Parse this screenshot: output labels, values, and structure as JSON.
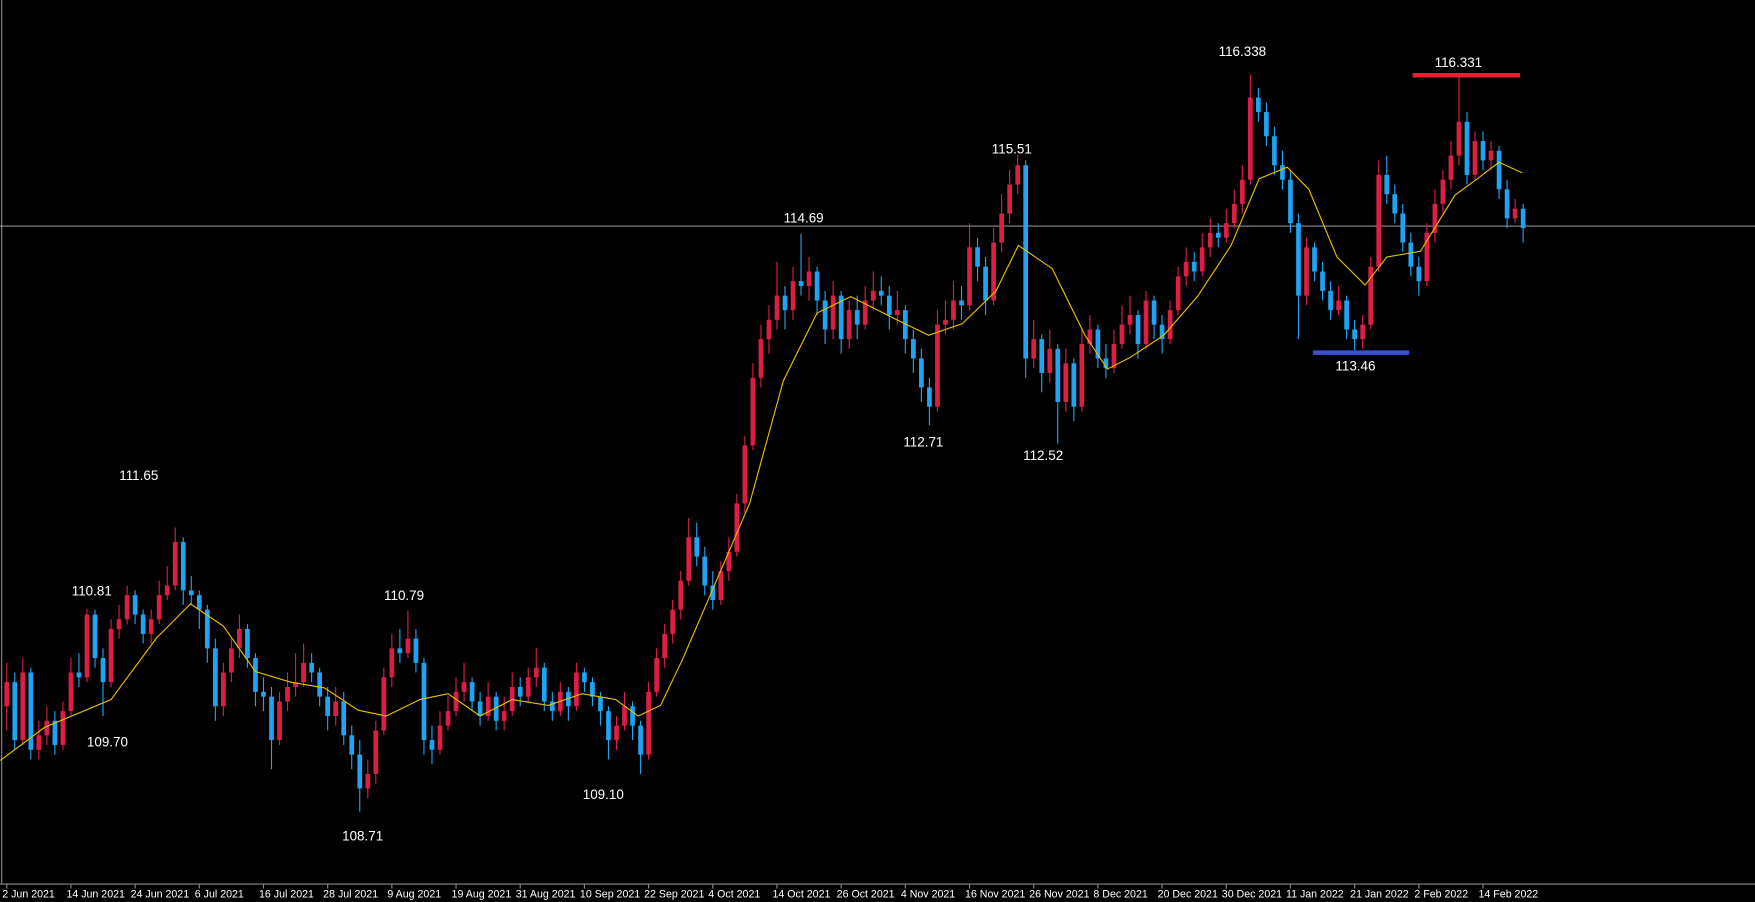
{
  "chart_data": {
    "type": "candlestick",
    "bull_color": "#dc1e44",
    "bear_color": "#1ea4f4",
    "ma_color": "#e8c000",
    "axis_color": "#8a8a8a",
    "ylim": [
      107.96,
      117.11
    ],
    "xlim": [
      -0.84,
      217.9
    ],
    "price_line": {
      "value": 114.77,
      "color": "#b8b8b8"
    },
    "levels": [
      {
        "value": 116.331,
        "color": "#e8202f"
      },
      {
        "value": 113.46,
        "color": "#3b4fd6"
      }
    ],
    "annotations": [
      111.65,
      110.81,
      {
        "value": 109.7,
        "label": "109.70"
      },
      110.79,
      108.71,
      {
        "value": 109.1,
        "label": "109.10"
      },
      114.69,
      112.71,
      115.51,
      112.52,
      116.338,
      116.331,
      113.46
    ],
    "xticks": [
      {
        "value": 0,
        "label": "2 Jun 2021"
      },
      {
        "value": 8,
        "label": "14 Jun 2021"
      },
      {
        "value": 16,
        "label": "24 Jun 2021"
      },
      {
        "value": 24,
        "label": "6 Jul 2021"
      },
      {
        "value": 32,
        "label": "16 Jul 2021"
      },
      {
        "value": 40,
        "label": "28 Jul 2021"
      },
      {
        "value": 48,
        "label": "9 Aug 2021"
      },
      {
        "value": 56,
        "label": "19 Aug 2021"
      },
      {
        "value": 64,
        "label": "31 Aug 2021"
      },
      {
        "value": 72,
        "label": "10 Sep 2021"
      },
      {
        "value": 80,
        "label": "22 Sep 2021"
      },
      {
        "value": 88,
        "label": "4 Oct 2021"
      },
      {
        "value": 96,
        "label": "14 Oct 2021"
      },
      {
        "value": 104,
        "label": "26 Oct 2021"
      },
      {
        "value": 112,
        "label": "4 Nov 2021"
      },
      {
        "value": 120,
        "label": "16 Nov 2021"
      },
      {
        "value": 128,
        "label": "26 Nov 2021"
      },
      {
        "value": 136,
        "label": "8 Dec 2021"
      },
      {
        "value": 144,
        "label": "20 Dec 2021"
      },
      {
        "value": 152,
        "label": "30 Dec 2021"
      },
      {
        "value": 160,
        "label": "11 Jan 2022"
      },
      {
        "value": 168,
        "label": "21 Jan 2022"
      },
      {
        "value": 176,
        "label": "2 Feb 2022"
      },
      {
        "value": 184,
        "label": "14 Feb 2022"
      }
    ],
    "ma": {
      "x": [
        -0.8,
        4.7,
        13,
        18.7,
        22.9,
        27,
        31,
        35.4,
        39.6,
        43.8,
        47.3,
        51.5,
        55,
        59,
        63,
        67.5,
        71.7,
        75.9,
        78.7,
        81.5,
        84.2,
        88.4,
        92.6,
        96.8,
        101,
        105.2,
        110.7,
        114.9,
        119.1,
        123.3,
        126.1,
        130.3,
        134.4,
        137.2,
        140,
        144.2,
        148.4,
        152.6,
        156.1,
        159.6,
        162.3,
        165.8,
        169.3,
        172,
        176.2,
        180.5,
        183.3,
        186,
        188.9
      ],
      "values": [
        109.24,
        109.58,
        109.87,
        110.51,
        110.86,
        110.63,
        110.16,
        110.05,
        109.99,
        109.76,
        109.7,
        109.87,
        109.93,
        109.7,
        109.87,
        109.81,
        109.93,
        109.87,
        109.7,
        109.81,
        110.28,
        111.09,
        111.9,
        113.17,
        113.87,
        114.04,
        113.81,
        113.64,
        113.76,
        114.1,
        114.57,
        114.33,
        113.64,
        113.29,
        113.41,
        113.64,
        114.04,
        114.57,
        115.26,
        115.38,
        115.15,
        114.45,
        114.16,
        114.45,
        114.51,
        115.09,
        115.26,
        115.43,
        115.32
      ]
    },
    "candles": [
      [
        109.8,
        110.25,
        109.55,
        110.05
      ],
      [
        110.05,
        110.15,
        109.35,
        109.45
      ],
      [
        109.45,
        110.3,
        109.4,
        110.15
      ],
      [
        110.15,
        110.2,
        109.25,
        109.35
      ],
      [
        109.35,
        109.65,
        109.25,
        109.5
      ],
      [
        109.5,
        109.8,
        109.4,
        109.65
      ],
      [
        109.65,
        109.75,
        109.3,
        109.4
      ],
      [
        109.4,
        109.85,
        109.35,
        109.75
      ],
      [
        109.75,
        110.3,
        109.7,
        110.15
      ],
      [
        110.15,
        110.35,
        110,
        110.1
      ],
      [
        110.1,
        110.81,
        110.05,
        110.75
      ],
      [
        110.75,
        110.8,
        110.2,
        110.3
      ],
      [
        110.3,
        110.4,
        109.7,
        110.05
      ],
      [
        110.05,
        110.7,
        110,
        110.6
      ],
      [
        110.6,
        110.85,
        110.5,
        110.7
      ],
      [
        110.7,
        111.05,
        110.65,
        110.95
      ],
      [
        110.95,
        111,
        110.65,
        110.75
      ],
      [
        110.75,
        110.8,
        110.45,
        110.55
      ],
      [
        110.55,
        110.8,
        110.45,
        110.7
      ],
      [
        110.7,
        111.1,
        110.65,
        110.95
      ],
      [
        110.95,
        111.25,
        110.9,
        111.05
      ],
      [
        111.05,
        111.65,
        111,
        111.5
      ],
      [
        111.5,
        111.55,
        110.85,
        111
      ],
      [
        111,
        111.15,
        110.85,
        110.95
      ],
      [
        110.95,
        111,
        110.6,
        110.8
      ],
      [
        110.8,
        110.85,
        110.25,
        110.4
      ],
      [
        110.4,
        110.5,
        109.65,
        109.8
      ],
      [
        109.8,
        110.25,
        109.7,
        110.15
      ],
      [
        110.15,
        110.5,
        110.05,
        110.4
      ],
      [
        110.4,
        110.75,
        110.3,
        110.6
      ],
      [
        110.6,
        110.65,
        110.2,
        110.3
      ],
      [
        110.3,
        110.35,
        109.8,
        109.95
      ],
      [
        109.95,
        110.1,
        109.75,
        109.9
      ],
      [
        109.9,
        110,
        109.15,
        109.45
      ],
      [
        109.45,
        109.95,
        109.4,
        109.85
      ],
      [
        109.85,
        110.15,
        109.75,
        110
      ],
      [
        110,
        110.35,
        109.9,
        110.05
      ],
      [
        110.05,
        110.45,
        110,
        110.25
      ],
      [
        110.25,
        110.35,
        110.05,
        110.15
      ],
      [
        110.15,
        110.2,
        109.8,
        109.9
      ],
      [
        109.9,
        110,
        109.55,
        109.7
      ],
      [
        109.7,
        110,
        109.6,
        109.85
      ],
      [
        109.85,
        109.95,
        109.4,
        109.5
      ],
      [
        109.5,
        109.6,
        109.15,
        109.3
      ],
      [
        109.3,
        109.45,
        108.71,
        108.95
      ],
      [
        108.95,
        109.25,
        108.85,
        109.1
      ],
      [
        109.1,
        109.65,
        109,
        109.55
      ],
      [
        109.55,
        110.2,
        109.5,
        110.1
      ],
      [
        110.1,
        110.55,
        110,
        110.4
      ],
      [
        110.4,
        110.6,
        110.25,
        110.35
      ],
      [
        110.35,
        110.79,
        110.3,
        110.5
      ],
      [
        110.5,
        110.6,
        110.15,
        110.25
      ],
      [
        110.25,
        110.3,
        109.3,
        109.45
      ],
      [
        109.45,
        109.6,
        109.2,
        109.35
      ],
      [
        109.35,
        109.75,
        109.3,
        109.6
      ],
      [
        109.6,
        109.9,
        109.55,
        109.75
      ],
      [
        109.75,
        110.1,
        109.7,
        109.95
      ],
      [
        109.95,
        110.25,
        109.85,
        110.05
      ],
      [
        110.05,
        110.1,
        109.75,
        109.85
      ],
      [
        109.85,
        109.95,
        109.6,
        109.7
      ],
      [
        109.7,
        110.05,
        109.65,
        109.9
      ],
      [
        109.9,
        109.95,
        109.55,
        109.65
      ],
      [
        109.65,
        109.9,
        109.55,
        109.75
      ],
      [
        109.75,
        110.15,
        109.7,
        110
      ],
      [
        110,
        110.1,
        109.8,
        109.9
      ],
      [
        109.9,
        110.2,
        109.85,
        110.1
      ],
      [
        110.1,
        110.4,
        110,
        110.2
      ],
      [
        110.2,
        110.25,
        109.75,
        109.85
      ],
      [
        109.85,
        109.95,
        109.65,
        109.75
      ],
      [
        109.75,
        110.05,
        109.7,
        109.95
      ],
      [
        109.95,
        110,
        109.65,
        109.8
      ],
      [
        109.8,
        110.25,
        109.75,
        110.15
      ],
      [
        110.15,
        110.2,
        109.95,
        110.05
      ],
      [
        110.05,
        110.1,
        109.8,
        109.9
      ],
      [
        109.9,
        109.95,
        109.6,
        109.75
      ],
      [
        109.75,
        109.8,
        109.25,
        109.45
      ],
      [
        109.45,
        109.7,
        109.35,
        109.6
      ],
      [
        109.6,
        109.95,
        109.55,
        109.8
      ],
      [
        109.8,
        109.85,
        109.45,
        109.6
      ],
      [
        109.6,
        109.65,
        109.1,
        109.3
      ],
      [
        109.3,
        110.05,
        109.25,
        109.95
      ],
      [
        109.95,
        110.4,
        109.9,
        110.3
      ],
      [
        110.3,
        110.65,
        110.2,
        110.55
      ],
      [
        110.55,
        110.9,
        110.45,
        110.8
      ],
      [
        110.8,
        111.2,
        110.7,
        111.1
      ],
      [
        111.1,
        111.75,
        111.05,
        111.55
      ],
      [
        111.55,
        111.7,
        111.25,
        111.35
      ],
      [
        111.35,
        111.45,
        110.95,
        111.05
      ],
      [
        111.05,
        111.2,
        110.8,
        110.9
      ],
      [
        110.9,
        111.3,
        110.85,
        111.2
      ],
      [
        111.2,
        111.55,
        111.1,
        111.4
      ],
      [
        111.4,
        112,
        111.35,
        111.9
      ],
      [
        111.9,
        112.6,
        111.8,
        112.5
      ],
      [
        112.5,
        113.35,
        112.45,
        113.2
      ],
      [
        113.2,
        113.75,
        113.1,
        113.6
      ],
      [
        113.6,
        113.95,
        113.45,
        113.8
      ],
      [
        113.8,
        114.4,
        113.7,
        114.05
      ],
      [
        114.05,
        114.15,
        113.7,
        113.9
      ],
      [
        113.9,
        114.35,
        113.8,
        114.2
      ],
      [
        114.2,
        114.69,
        114.05,
        114.15
      ],
      [
        114.15,
        114.45,
        114,
        114.3
      ],
      [
        114.3,
        114.35,
        113.85,
        114
      ],
      [
        114,
        114.1,
        113.55,
        113.7
      ],
      [
        113.7,
        114.2,
        113.6,
        114.05
      ],
      [
        114.05,
        114.1,
        113.45,
        113.6
      ],
      [
        113.6,
        114,
        113.5,
        113.9
      ],
      [
        113.9,
        114.05,
        113.6,
        113.75
      ],
      [
        113.75,
        114.15,
        113.7,
        114
      ],
      [
        114,
        114.3,
        113.9,
        114.1
      ],
      [
        114.1,
        114.25,
        113.95,
        114.05
      ],
      [
        114.05,
        114.15,
        113.7,
        113.85
      ],
      [
        113.85,
        114.1,
        113.75,
        113.9
      ],
      [
        113.9,
        113.95,
        113.45,
        113.6
      ],
      [
        113.6,
        113.7,
        113.25,
        113.4
      ],
      [
        113.4,
        113.5,
        112.95,
        113.1
      ],
      [
        113.1,
        113.2,
        112.71,
        112.9
      ],
      [
        112.9,
        113.9,
        112.85,
        113.75
      ],
      [
        113.75,
        114,
        113.65,
        113.8
      ],
      [
        113.8,
        114.2,
        113.7,
        114
      ],
      [
        114,
        114.15,
        113.8,
        113.95
      ],
      [
        113.95,
        114.8,
        113.9,
        114.55
      ],
      [
        114.55,
        114.65,
        114.2,
        114.35
      ],
      [
        114.35,
        114.45,
        113.85,
        114
      ],
      [
        114,
        114.75,
        113.95,
        114.6
      ],
      [
        114.6,
        115.1,
        114.5,
        114.9
      ],
      [
        114.9,
        115.35,
        114.8,
        115.2
      ],
      [
        115.2,
        115.51,
        115.1,
        115.4
      ],
      [
        115.4,
        115.45,
        113.2,
        113.4
      ],
      [
        113.4,
        113.8,
        113.3,
        113.6
      ],
      [
        113.6,
        113.65,
        113.05,
        113.25
      ],
      [
        113.25,
        113.7,
        113.15,
        113.5
      ],
      [
        113.5,
        113.55,
        112.52,
        112.95
      ],
      [
        112.95,
        113.5,
        112.85,
        113.35
      ],
      [
        113.35,
        113.4,
        112.75,
        112.9
      ],
      [
        112.9,
        113.7,
        112.85,
        113.55
      ],
      [
        113.55,
        113.85,
        113.45,
        113.7
      ],
      [
        113.7,
        113.75,
        113.3,
        113.4
      ],
      [
        113.4,
        113.55,
        113.2,
        113.3
      ],
      [
        113.3,
        113.7,
        113.25,
        113.55
      ],
      [
        113.55,
        113.95,
        113.5,
        113.75
      ],
      [
        113.75,
        114.05,
        113.65,
        113.85
      ],
      [
        113.85,
        113.9,
        113.4,
        113.55
      ],
      [
        113.55,
        114.1,
        113.5,
        114
      ],
      [
        114,
        114.05,
        113.6,
        113.75
      ],
      [
        113.75,
        113.85,
        113.45,
        113.6
      ],
      [
        113.6,
        114,
        113.55,
        113.9
      ],
      [
        113.9,
        114.35,
        113.85,
        114.25
      ],
      [
        114.25,
        114.55,
        114.15,
        114.4
      ],
      [
        114.4,
        114.5,
        114.2,
        114.3
      ],
      [
        114.3,
        114.7,
        114.25,
        114.55
      ],
      [
        114.55,
        114.85,
        114.45,
        114.7
      ],
      [
        114.7,
        114.8,
        114.55,
        114.65
      ],
      [
        114.65,
        114.95,
        114.6,
        114.8
      ],
      [
        114.8,
        115.15,
        114.75,
        115
      ],
      [
        115,
        115.4,
        114.9,
        115.25
      ],
      [
        115.25,
        116.338,
        115.2,
        116.1
      ],
      [
        116.1,
        116.2,
        115.85,
        115.95
      ],
      [
        115.95,
        116.05,
        115.6,
        115.7
      ],
      [
        115.7,
        115.8,
        115.3,
        115.4
      ],
      [
        115.4,
        115.55,
        115.15,
        115.25
      ],
      [
        115.25,
        115.35,
        114.7,
        114.8
      ],
      [
        114.8,
        114.9,
        113.6,
        114.05
      ],
      [
        114.05,
        114.65,
        113.95,
        114.55
      ],
      [
        114.55,
        114.6,
        114.2,
        114.3
      ],
      [
        114.3,
        114.4,
        114,
        114.1
      ],
      [
        114.1,
        114.2,
        113.8,
        113.9
      ],
      [
        113.9,
        114.15,
        113.85,
        114
      ],
      [
        114,
        114.05,
        113.6,
        113.7
      ],
      [
        113.7,
        113.8,
        113.46,
        113.6
      ],
      [
        113.6,
        113.85,
        113.5,
        113.75
      ],
      [
        113.75,
        114.45,
        113.7,
        114.35
      ],
      [
        114.35,
        115.45,
        114.3,
        115.3
      ],
      [
        115.3,
        115.5,
        115,
        115.1
      ],
      [
        115.1,
        115.2,
        114.8,
        114.9
      ],
      [
        114.9,
        115,
        114.5,
        114.6
      ],
      [
        114.6,
        114.7,
        114.25,
        114.35
      ],
      [
        114.35,
        114.45,
        114.05,
        114.2
      ],
      [
        114.2,
        114.8,
        114.15,
        114.7
      ],
      [
        114.7,
        115.15,
        114.6,
        115
      ],
      [
        115,
        115.35,
        114.9,
        115.25
      ],
      [
        115.25,
        115.65,
        115.15,
        115.5
      ],
      [
        115.5,
        116.331,
        115.4,
        115.85
      ],
      [
        115.85,
        115.95,
        115.2,
        115.3
      ],
      [
        115.3,
        115.75,
        115.25,
        115.65
      ],
      [
        115.65,
        115.75,
        115.35,
        115.45
      ],
      [
        115.45,
        115.65,
        115.35,
        115.55
      ],
      [
        115.55,
        115.6,
        115.05,
        115.15
      ],
      [
        115.15,
        115.25,
        114.75,
        114.85
      ],
      [
        114.85,
        115.05,
        114.8,
        114.95
      ],
      [
        114.95,
        115,
        114.6,
        114.75
      ]
    ]
  }
}
